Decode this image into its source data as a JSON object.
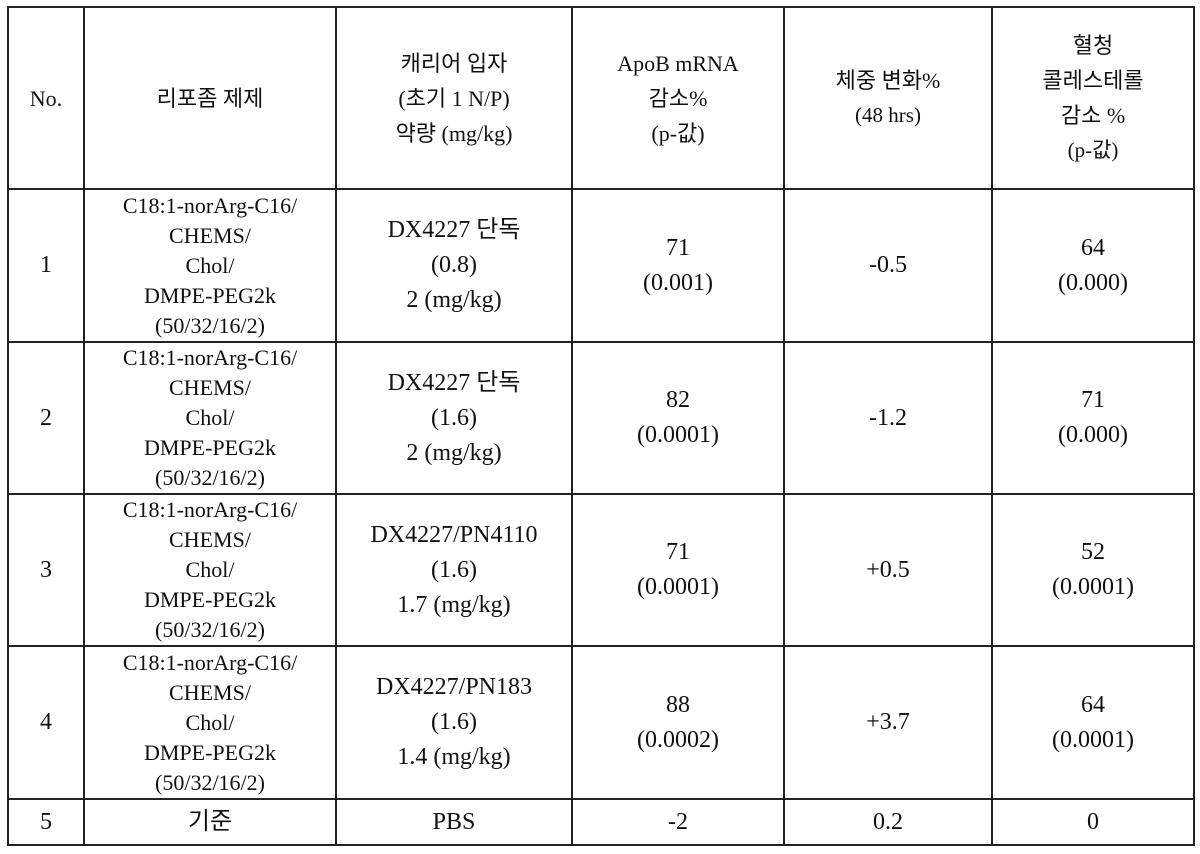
{
  "table": {
    "headers": [
      {
        "key": "no",
        "lines": [
          "No."
        ]
      },
      {
        "key": "formulation",
        "lines": [
          "리포좀 제제"
        ]
      },
      {
        "key": "carrier",
        "lines": [
          "캐리어 입자",
          "(초기 1 N/P)",
          "약량 (mg/kg)"
        ]
      },
      {
        "key": "apob",
        "lines": [
          "ApoB mRNA",
          "감소%",
          "(p-값)"
        ]
      },
      {
        "key": "weight",
        "lines": [
          "체중 변화%",
          "(48 hrs)"
        ]
      },
      {
        "key": "chol",
        "lines": [
          "혈청",
          "콜레스테롤",
          "감소 %",
          "(p-값)"
        ]
      }
    ],
    "rows": [
      {
        "no": "1",
        "formulation": [
          "C18:1-norArg-C16/",
          "CHEMS/",
          "Chol/",
          "DMPE-PEG2k",
          "(50/32/16/2)"
        ],
        "carrier": [
          "DX4227 단독",
          "(0.8)",
          "2 (mg/kg)"
        ],
        "apob": [
          "71",
          "(0.001)"
        ],
        "weight": [
          "-0.5"
        ],
        "chol": [
          "64",
          "(0.000)"
        ]
      },
      {
        "no": "2",
        "formulation": [
          "C18:1-norArg-C16/",
          "CHEMS/",
          "Chol/",
          "DMPE-PEG2k",
          "(50/32/16/2)"
        ],
        "carrier": [
          "DX4227 단독",
          "(1.6)",
          "2 (mg/kg)"
        ],
        "apob": [
          "82",
          "(0.0001)"
        ],
        "weight": [
          "-1.2"
        ],
        "chol": [
          "71",
          "(0.000)"
        ]
      },
      {
        "no": "3",
        "formulation": [
          "C18:1-norArg-C16/",
          "CHEMS/",
          "Chol/",
          "DMPE-PEG2k",
          "(50/32/16/2)"
        ],
        "carrier": [
          "DX4227/PN4110",
          "(1.6)",
          "1.7 (mg/kg)"
        ],
        "apob": [
          "71",
          "(0.0001)"
        ],
        "weight": [
          "+0.5"
        ],
        "chol": [
          "52",
          "(0.0001)"
        ]
      },
      {
        "no": "4",
        "formulation": [
          "C18:1-norArg-C16/",
          "CHEMS/",
          "Chol/",
          "DMPE-PEG2k",
          "(50/32/16/2)"
        ],
        "carrier": [
          "DX4227/PN183",
          "(1.6)",
          "1.4 (mg/kg)"
        ],
        "apob": [
          "88",
          "(0.0002)"
        ],
        "weight": [
          "+3.7"
        ],
        "chol": [
          "64",
          "(0.0001)"
        ]
      },
      {
        "no": "5",
        "formulation": [
          "기준"
        ],
        "carrier": [
          "PBS"
        ],
        "apob": [
          "-2"
        ],
        "weight": [
          "0.2"
        ],
        "chol": [
          "0"
        ]
      }
    ]
  }
}
